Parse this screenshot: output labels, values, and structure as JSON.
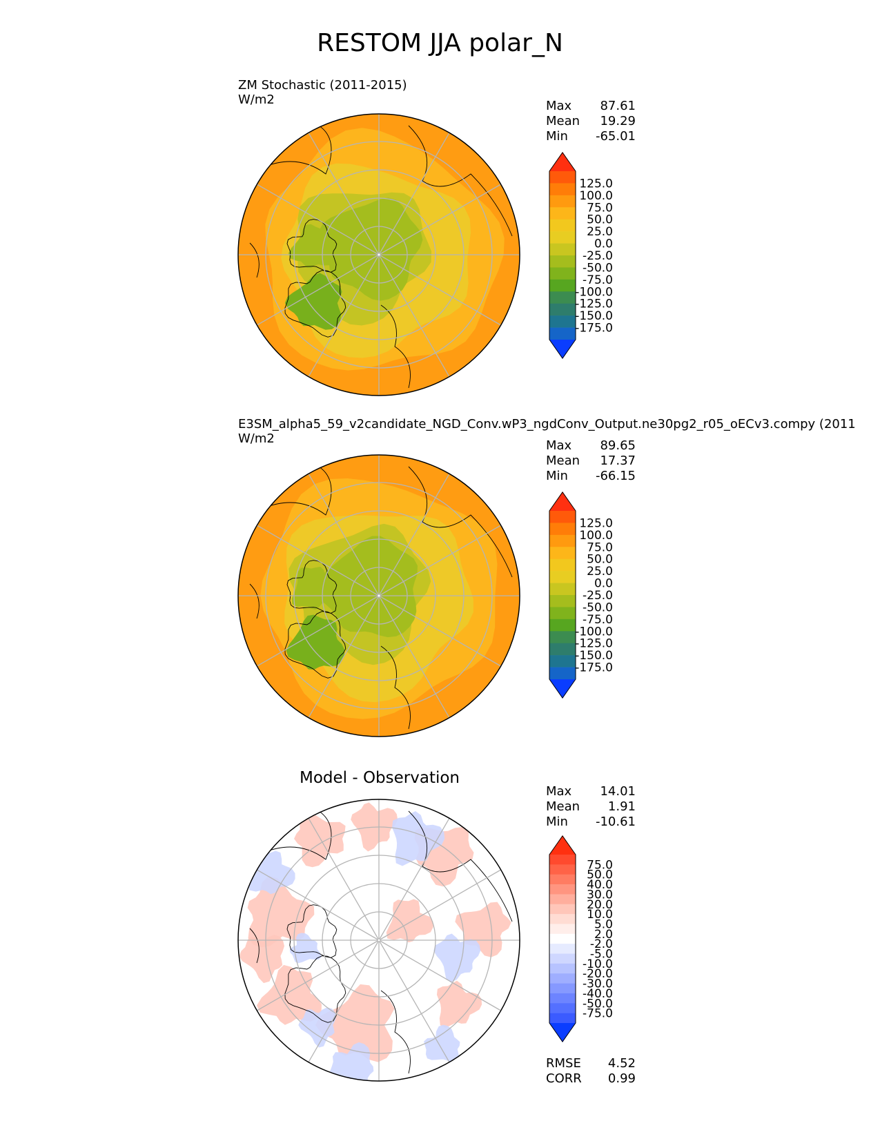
{
  "title": "RESTOM JJA polar_N",
  "panels": [
    {
      "id": "test",
      "title": "ZM Stochastic (2011-2015)",
      "units": "W/m2",
      "stats": {
        "max_label": "Max",
        "max": "87.61",
        "mean_label": "Mean",
        "mean": "19.29",
        "min_label": "Min",
        "min": "-65.01"
      }
    },
    {
      "id": "ref",
      "title": "E3SM_alpha5_59_v2candidate_NGD_Conv.wP3_ngdConv_Output.ne30pg2_r05_oECv3.compy (2011",
      "units": "W/m2",
      "stats": {
        "max_label": "Max",
        "max": "89.65",
        "mean_label": "Mean",
        "mean": "17.37",
        "min_label": "Min",
        "min": "-66.15"
      }
    },
    {
      "id": "diff",
      "title": "Model - Observation",
      "stats": {
        "max_label": "Max",
        "max": "14.01",
        "mean_label": "Mean",
        "mean": "1.91",
        "min_label": "Min",
        "min": "-10.61"
      },
      "metrics": {
        "rmse_label": "RMSE",
        "rmse": "4.52",
        "corr_label": "CORR",
        "corr": "0.99"
      }
    }
  ],
  "colorbar_main": {
    "labels": [
      "125.0",
      "100.0",
      "75.0",
      "50.0",
      "25.0",
      "0.0",
      "-25.0",
      "-50.0",
      "-75.0",
      "-100.0",
      "-125.0",
      "-150.0",
      "-175.0"
    ],
    "colors": [
      "#ff3010",
      "#ff5a0a",
      "#ff7d08",
      "#ff9a0f",
      "#fdb619",
      "#f2c81e",
      "#e8cd22",
      "#c9c620",
      "#a5bd1d",
      "#80b31c",
      "#57a620",
      "#3c8c50",
      "#2e7d6c",
      "#1e7590",
      "#1565c8",
      "#0a3dff"
    ]
  },
  "colorbar_diff": {
    "labels": [
      "75.0",
      "50.0",
      "40.0",
      "30.0",
      "20.0",
      "10.0",
      "5.0",
      "2.0",
      "-2.0",
      "-5.0",
      "-10.0",
      "-20.0",
      "-30.0",
      "-40.0",
      "-50.0",
      "-75.0"
    ],
    "colors": [
      "#ff3010",
      "#ff4a2e",
      "#ff6347",
      "#ff7c62",
      "#ff9580",
      "#ffae9d",
      "#ffc6b9",
      "#ffdcd3",
      "#ffeeea",
      "#ffffff",
      "#e6ebff",
      "#cfd7ff",
      "#b7c3ff",
      "#9faeff",
      "#8699ff",
      "#6d84ff",
      "#5470ff",
      "#3b5bff",
      "#0a3dff"
    ]
  },
  "map_colors": {
    "outer": "#ff9c12",
    "mid": "#fdb51d",
    "inner": "#eec928",
    "green_light": "#c4c423",
    "green": "#a4bd1e",
    "green_dark": "#78b01c",
    "diff_pink": "#ffc8bd",
    "diff_blue": "#cdd7ff",
    "grid": "#b5b5b5",
    "coast": "#000000"
  }
}
